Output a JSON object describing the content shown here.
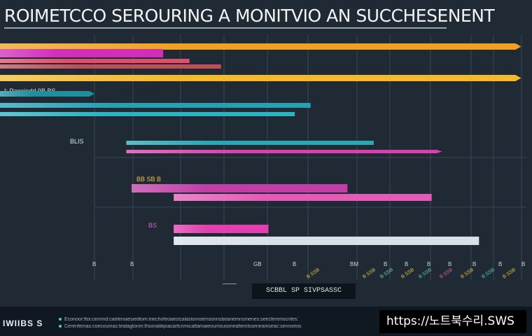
{
  "title": "ROIMETCCO SEROURING A MONITVIO AN SUCCHESENENT",
  "chart_data": {
    "type": "bar",
    "orientation": "horizontal",
    "title": "ROIMETCCO SEROURING A MONITVIO AN SUCCHESENENT",
    "xlim": [
      0,
      100
    ],
    "grid": true,
    "groups": [
      {
        "name": "",
        "bars": [
          {
            "start": 0,
            "value": 99,
            "color": "#f0a022",
            "arrow": true
          },
          {
            "start": 0,
            "value": 31,
            "color": "#d02fb8"
          },
          {
            "start": 0,
            "value": 36,
            "color": "#e04f6a"
          },
          {
            "start": 0,
            "value": 42,
            "color": "#c24d57"
          },
          {
            "start": 0,
            "value": 99,
            "color": "#f4b92c",
            "arrow": true
          }
        ]
      },
      {
        "name": "I: Paoeiodd 9B BS",
        "bars": [
          {
            "start": 0,
            "value": 18,
            "color": "#1f8f9e",
            "arrow": true
          },
          {
            "start": 0,
            "value": 59,
            "color": "#26a1b3"
          },
          {
            "start": 0,
            "value": 56,
            "color": "#2bb3c0"
          }
        ]
      },
      {
        "name": "BLIS",
        "bars": [
          {
            "start": 24,
            "value": 71,
            "color": "#28a7b4"
          },
          {
            "start": 24,
            "value": 84,
            "color": "#d93fae",
            "arrow": true
          }
        ]
      },
      {
        "name": "BB SB B",
        "bars": [
          {
            "start": 25,
            "value": 66,
            "color": "#c03ea6"
          },
          {
            "start": 33,
            "value": 82,
            "color": "#e65ab7"
          }
        ]
      },
      {
        "name": "BS",
        "bars": [
          {
            "start": 33,
            "value": 51,
            "color": "#e33fae"
          },
          {
            "start": 33,
            "value": 91,
            "color": "#d8e0e8"
          }
        ]
      }
    ],
    "tick_labels": [
      "B",
      "B",
      "GB",
      "B",
      "BM",
      "B",
      "B",
      "B",
      "B",
      "B",
      "B",
      "B"
    ]
  },
  "footer": {
    "logo": "IWIIBS S",
    "note_1": "Econoor:ftoi:cemmd:caeleniaesiedtom:eiechofeoaectcalastomoemsonnsbeanemnsmenes:seeclemmscntes:",
    "note_2": "Cerenfemas:coecoumas:tealagtonm:lhsonalilqoacartcnmicattamaieoumsusoneafiemlsseneamseac:sennoeos",
    "center_label": "SCBBL SP SIVPSASSC",
    "url": "https://노트북수리.SWS"
  }
}
